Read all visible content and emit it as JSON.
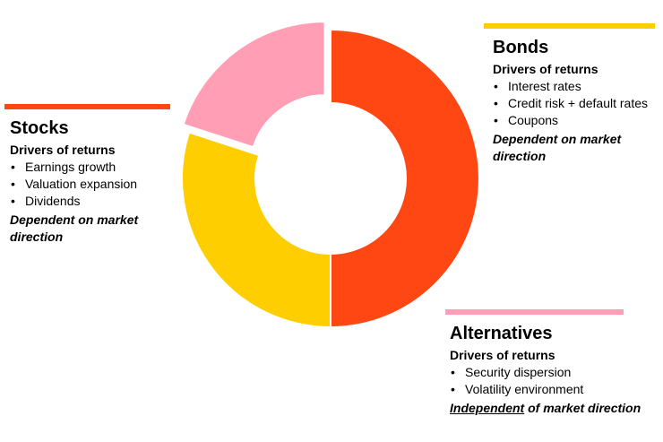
{
  "chart_data": {
    "type": "pie",
    "segments": [
      {
        "name": "Stocks",
        "value": 50,
        "color": "#FF4713"
      },
      {
        "name": "Bonds",
        "value": 30,
        "color": "#FFCE00"
      },
      {
        "name": "Alternatives",
        "value": 20,
        "color": "#FF9EB4",
        "exploded": true
      }
    ]
  },
  "panels": {
    "stocks": {
      "title": "Stocks",
      "drivers_label": "Drivers of returns",
      "bullets": [
        "Earnings growth",
        "Valuation expansion",
        "Dividends"
      ],
      "note": "Dependent on market direction",
      "color": "#FF4713"
    },
    "bonds": {
      "title": "Bonds",
      "drivers_label": "Drivers of returns",
      "bullets": [
        "Interest rates",
        "Credit risk + default rates",
        "Coupons"
      ],
      "note": "Dependent on market direction",
      "color": "#FFCE00"
    },
    "alternatives": {
      "title": "Alternatives",
      "drivers_label": "Drivers of returns",
      "bullets": [
        "Security dispersion",
        "Volatility environment"
      ],
      "note_emphasis": "Independent",
      "note_rest": " of market direction",
      "color": "#FF9EB4"
    }
  }
}
